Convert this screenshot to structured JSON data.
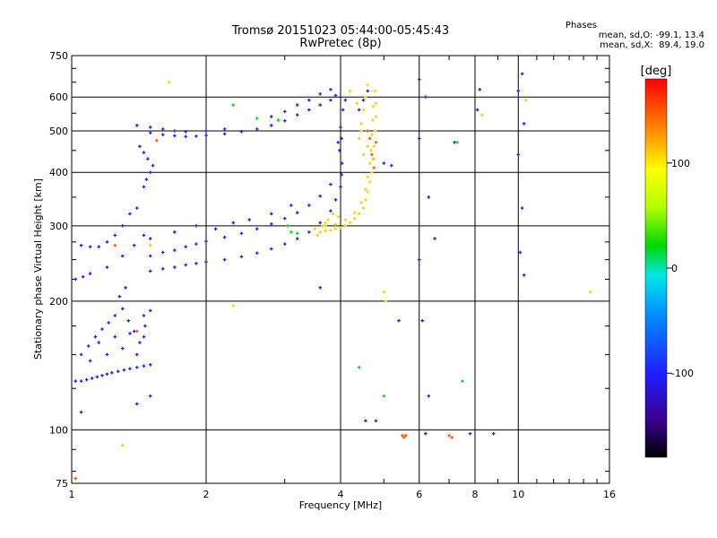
{
  "header": {
    "title": "Tromsø 20151023 05:44:00-05:45:43",
    "subtitle": "RwPretec (8p)",
    "stats_heading": "Phases",
    "stats_o": "mean, sd,O: -99.1, 13.4",
    "stats_x": "mean, sd,X:  89.4, 19.0"
  },
  "chart_data": {
    "type": "scatter",
    "xlabel": "Frequency [MHz]",
    "ylabel": "Stationary phase Virtual Height [km]",
    "xscale": "log",
    "yscale": "log",
    "xlim": [
      1,
      16
    ],
    "ylim": [
      75,
      750
    ],
    "xticks": [
      1,
      2,
      4,
      6,
      8,
      10,
      16
    ],
    "xtick_labels": [
      "1",
      "2",
      "4",
      "6",
      "8",
      "10",
      "16"
    ],
    "yticks": [
      75,
      100,
      200,
      300,
      400,
      500,
      600,
      750
    ],
    "ytick_labels": [
      "75",
      "100",
      "200",
      "300",
      "400",
      "500",
      "600",
      "750"
    ],
    "grid": true,
    "colorbar": {
      "label": "[deg]",
      "range": [
        -180,
        180
      ],
      "ticks": [
        100,
        0,
        -100
      ],
      "tick_labels": [
        "100",
        "0",
        "-100"
      ]
    },
    "series": [
      {
        "phase": -100,
        "points": [
          [
            1.02,
            130
          ],
          [
            1.05,
            130
          ],
          [
            1.08,
            131
          ],
          [
            1.11,
            132
          ],
          [
            1.14,
            133
          ],
          [
            1.17,
            134
          ],
          [
            1.2,
            135
          ],
          [
            1.23,
            136
          ],
          [
            1.27,
            137
          ],
          [
            1.31,
            138
          ],
          [
            1.35,
            139
          ],
          [
            1.4,
            140
          ],
          [
            1.45,
            141
          ],
          [
            1.5,
            142
          ],
          [
            1.05,
            150
          ],
          [
            1.09,
            157
          ],
          [
            1.13,
            165
          ],
          [
            1.17,
            172
          ],
          [
            1.21,
            178
          ],
          [
            1.25,
            185
          ],
          [
            1.3,
            192
          ],
          [
            1.34,
            180
          ],
          [
            1.38,
            170
          ],
          [
            1.42,
            160
          ],
          [
            1.46,
            175
          ],
          [
            1.5,
            190
          ],
          [
            1.1,
            145
          ],
          [
            1.15,
            160
          ],
          [
            1.2,
            150
          ],
          [
            1.25,
            165
          ],
          [
            1.3,
            155
          ],
          [
            1.35,
            168
          ],
          [
            1.4,
            150
          ],
          [
            1.45,
            185
          ],
          [
            1.28,
            205
          ],
          [
            1.32,
            215
          ],
          [
            1.02,
            225
          ],
          [
            1.06,
            228
          ],
          [
            1.1,
            232
          ],
          [
            1.2,
            240
          ],
          [
            1.3,
            255
          ],
          [
            1.38,
            270
          ],
          [
            1.45,
            285
          ],
          [
            1.05,
            270
          ],
          [
            1.1,
            268
          ],
          [
            1.15,
            268
          ],
          [
            1.2,
            275
          ],
          [
            1.25,
            285
          ],
          [
            1.3,
            300
          ],
          [
            1.35,
            320
          ],
          [
            1.4,
            330
          ],
          [
            1.5,
            235
          ],
          [
            1.6,
            238
          ],
          [
            1.7,
            240
          ],
          [
            1.8,
            243
          ],
          [
            1.9,
            245
          ],
          [
            2.0,
            247
          ],
          [
            2.2,
            250
          ],
          [
            2.4,
            254
          ],
          [
            2.6,
            259
          ],
          [
            2.8,
            265
          ],
          [
            3.0,
            272
          ],
          [
            3.2,
            280
          ],
          [
            3.4,
            290
          ],
          [
            3.6,
            305
          ],
          [
            3.8,
            325
          ],
          [
            3.9,
            345
          ],
          [
            4.0,
            370
          ],
          [
            4.02,
            395
          ],
          [
            4.03,
            420
          ],
          [
            1.5,
            255
          ],
          [
            1.6,
            260
          ],
          [
            1.7,
            263
          ],
          [
            1.8,
            268
          ],
          [
            1.9,
            272
          ],
          [
            2.0,
            276
          ],
          [
            2.2,
            282
          ],
          [
            2.4,
            288
          ],
          [
            2.6,
            295
          ],
          [
            2.8,
            303
          ],
          [
            3.0,
            312
          ],
          [
            3.2,
            322
          ],
          [
            3.4,
            335
          ],
          [
            3.6,
            352
          ],
          [
            3.8,
            375
          ],
          [
            1.5,
            280
          ],
          [
            1.7,
            290
          ],
          [
            1.9,
            300
          ],
          [
            2.1,
            295
          ],
          [
            2.3,
            305
          ],
          [
            2.5,
            310
          ],
          [
            2.8,
            320
          ],
          [
            3.1,
            335
          ],
          [
            1.45,
            370
          ],
          [
            1.47,
            385
          ],
          [
            1.5,
            400
          ],
          [
            1.52,
            415
          ],
          [
            1.48,
            430
          ],
          [
            1.45,
            445
          ],
          [
            1.42,
            460
          ],
          [
            1.5,
            495
          ],
          [
            1.6,
            490
          ],
          [
            1.7,
            487
          ],
          [
            1.8,
            485
          ],
          [
            1.9,
            486
          ],
          [
            2.0,
            488
          ],
          [
            2.2,
            492
          ],
          [
            2.4,
            498
          ],
          [
            2.6,
            505
          ],
          [
            2.8,
            515
          ],
          [
            3.0,
            528
          ],
          [
            3.2,
            545
          ],
          [
            3.4,
            560
          ],
          [
            3.6,
            575
          ],
          [
            3.8,
            590
          ],
          [
            3.9,
            605
          ],
          [
            2.8,
            540
          ],
          [
            3.0,
            555
          ],
          [
            3.2,
            575
          ],
          [
            3.4,
            590
          ],
          [
            3.6,
            610
          ],
          [
            3.8,
            625
          ],
          [
            1.4,
            515
          ],
          [
            1.5,
            510
          ],
          [
            1.6,
            505
          ],
          [
            1.7,
            500
          ],
          [
            1.8,
            498
          ],
          [
            2.0,
            500
          ],
          [
            2.2,
            505
          ],
          [
            3.95,
            470
          ],
          [
            4.0,
            510
          ],
          [
            4.05,
            560
          ],
          [
            4.1,
            590
          ],
          [
            3.98,
            450
          ],
          [
            4.02,
            480
          ],
          [
            4.4,
            560
          ],
          [
            4.5,
            590
          ],
          [
            4.6,
            620
          ],
          [
            6.0,
            660
          ],
          [
            6.2,
            600
          ],
          [
            6.0,
            480
          ],
          [
            6.3,
            350
          ],
          [
            6.5,
            280
          ],
          [
            6.0,
            250
          ],
          [
            6.1,
            180
          ],
          [
            6.3,
            120
          ],
          [
            10.2,
            680
          ],
          [
            10.0,
            620
          ],
          [
            10.3,
            520
          ],
          [
            10.0,
            440
          ],
          [
            10.2,
            330
          ],
          [
            10.1,
            260
          ],
          [
            10.3,
            230
          ],
          [
            8.2,
            625
          ],
          [
            8.1,
            560
          ],
          [
            7.2,
            470
          ],
          [
            5.2,
            415
          ],
          [
            5.0,
            420
          ],
          [
            4.55,
            105
          ],
          [
            4.8,
            105
          ],
          [
            8.8,
            98
          ],
          [
            7.8,
            98
          ],
          [
            6.2,
            98
          ],
          [
            1.05,
            110
          ],
          [
            1.4,
            115
          ],
          [
            1.45,
            165
          ],
          [
            1.5,
            120
          ],
          [
            3.6,
            215
          ],
          [
            5.4,
            180
          ]
        ]
      },
      {
        "phase": 20,
        "points": [
          [
            2.6,
            535
          ],
          [
            2.9,
            530
          ],
          [
            3.1,
            290
          ],
          [
            3.2,
            288
          ],
          [
            7.3,
            470
          ],
          [
            7.5,
            130
          ],
          [
            5.0,
            120
          ],
          [
            4.4,
            140
          ],
          [
            2.3,
            575
          ],
          [
            3.05,
            300
          ]
        ]
      },
      {
        "phase": 110,
        "points": [
          [
            3.5,
            295
          ],
          [
            3.6,
            290
          ],
          [
            3.7,
            292
          ],
          [
            3.8,
            293
          ],
          [
            3.9,
            295
          ],
          [
            4.0,
            297
          ],
          [
            4.1,
            300
          ],
          [
            4.2,
            305
          ],
          [
            4.3,
            312
          ],
          [
            4.4,
            320
          ],
          [
            4.5,
            330
          ],
          [
            4.55,
            345
          ],
          [
            4.6,
            360
          ],
          [
            4.65,
            380
          ],
          [
            4.7,
            400
          ],
          [
            4.72,
            430
          ],
          [
            4.75,
            460
          ],
          [
            4.78,
            500
          ],
          [
            4.8,
            540
          ],
          [
            4.8,
            580
          ],
          [
            4.78,
            620
          ],
          [
            3.7,
            300
          ],
          [
            3.9,
            302
          ],
          [
            4.1,
            310
          ],
          [
            4.3,
            322
          ],
          [
            4.45,
            340
          ],
          [
            4.55,
            365
          ],
          [
            4.6,
            390
          ],
          [
            4.65,
            420
          ],
          [
            4.68,
            450
          ],
          [
            4.7,
            490
          ],
          [
            4.72,
            530
          ],
          [
            4.73,
            570
          ],
          [
            4.4,
            480
          ],
          [
            4.45,
            520
          ],
          [
            4.5,
            560
          ],
          [
            4.55,
            600
          ],
          [
            4.6,
            640
          ],
          [
            4.5,
            440
          ],
          [
            4.2,
            620
          ],
          [
            4.35,
            580
          ],
          [
            4.45,
            500
          ],
          [
            4.6,
            460
          ],
          [
            4.75,
            430
          ],
          [
            3.55,
            285
          ],
          [
            3.65,
            300
          ],
          [
            3.75,
            310
          ],
          [
            3.85,
            320
          ],
          [
            3.95,
            315
          ],
          [
            5.0,
            210
          ],
          [
            5.05,
            200
          ],
          [
            8.3,
            545
          ],
          [
            10.4,
            590
          ],
          [
            14.5,
            210
          ],
          [
            3.7,
            305
          ],
          [
            1.65,
            650
          ],
          [
            2.3,
            195
          ],
          [
            1.5,
            270
          ],
          [
            1.3,
            92
          ]
        ]
      },
      {
        "phase": 150,
        "points": [
          [
            5.5,
            97
          ],
          [
            5.55,
            96
          ],
          [
            5.6,
            97
          ],
          [
            7.0,
            97
          ],
          [
            7.1,
            96
          ],
          [
            4.75,
            410
          ],
          [
            4.7,
            440
          ],
          [
            4.65,
            480
          ],
          [
            4.8,
            470
          ],
          [
            4.6,
            500
          ],
          [
            1.55,
            475
          ],
          [
            1.4,
            170
          ],
          [
            1.25,
            270
          ],
          [
            1.02,
            77
          ]
        ]
      }
    ]
  }
}
